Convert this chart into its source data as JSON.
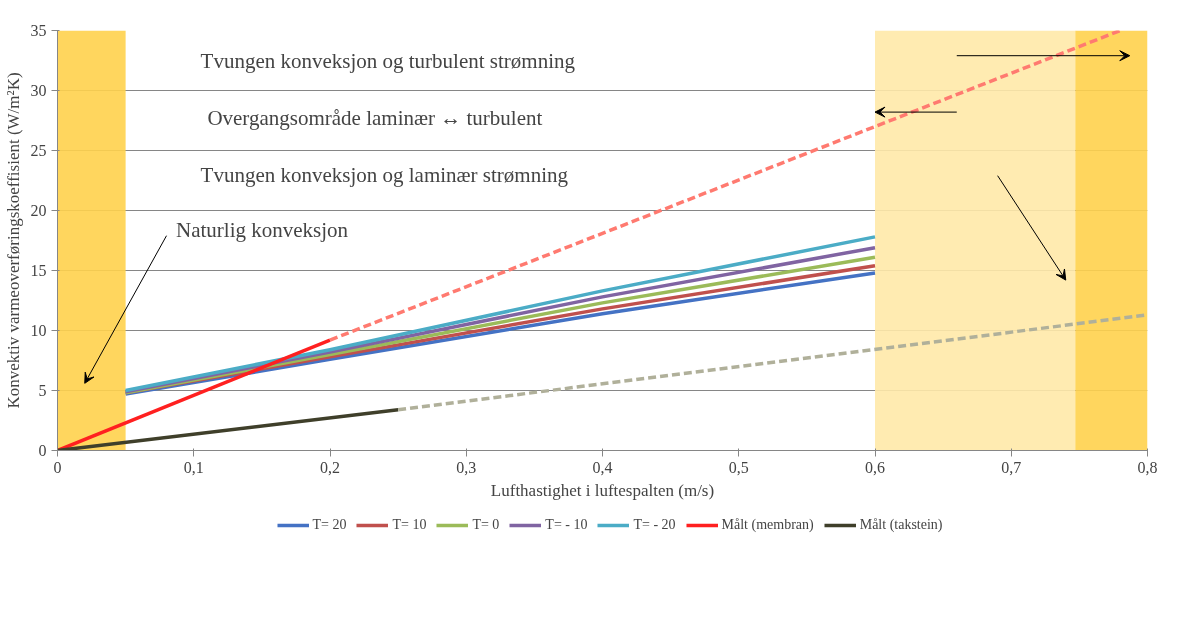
{
  "chart_data": {
    "type": "line",
    "xlabel": "Lufthastighet i luftespalten (m/s)",
    "ylabel": "Konvektiv varmeoverføringskoeffisient (W/m²K)",
    "xlim": [
      0,
      0.8
    ],
    "ylim": [
      0,
      35
    ],
    "xticks": [
      {
        "value": 0,
        "label": "0"
      },
      {
        "value": 0.1,
        "label": "0,1"
      },
      {
        "value": 0.2,
        "label": "0,2"
      },
      {
        "value": 0.3,
        "label": "0,3"
      },
      {
        "value": 0.4,
        "label": "0,4"
      },
      {
        "value": 0.5,
        "label": "0,5"
      },
      {
        "value": 0.6,
        "label": "0,6"
      },
      {
        "value": 0.7,
        "label": "0,7"
      },
      {
        "value": 0.8,
        "label": "0,8"
      }
    ],
    "yticks": [
      0,
      5,
      10,
      15,
      20,
      25,
      30,
      35
    ],
    "grid": "y",
    "legend": "bottom",
    "line_style": "solid",
    "series": [
      {
        "name": "T= 20",
        "color": "#4472c4",
        "x": [
          0.05,
          0.2,
          0.4,
          0.6
        ],
        "values": [
          4.7,
          7.6,
          11.4,
          14.8
        ]
      },
      {
        "name": "T= 10",
        "color": "#c0504d",
        "x": [
          0.05,
          0.2,
          0.4,
          0.6
        ],
        "values": [
          4.8,
          7.8,
          11.8,
          15.4
        ]
      },
      {
        "name": "T= 0",
        "color": "#9bbb59",
        "x": [
          0.05,
          0.2,
          0.4,
          0.6
        ],
        "values": [
          4.8,
          8.0,
          12.3,
          16.1
        ]
      },
      {
        "name": "T= - 10",
        "color": "#8064a2",
        "x": [
          0.05,
          0.2,
          0.4,
          0.6
        ],
        "values": [
          4.9,
          8.2,
          12.8,
          16.9
        ]
      },
      {
        "name": "T= - 20",
        "color": "#4bacc6",
        "x": [
          0.05,
          0.2,
          0.4,
          0.6
        ],
        "values": [
          5.0,
          8.4,
          13.3,
          17.8
        ]
      },
      {
        "name": "Målt (membran)",
        "color": "#ff2020",
        "x": [
          0,
          0.2
        ],
        "values": [
          0,
          9.2
        ]
      },
      {
        "color": "#ff7a70",
        "line_style": "dashed",
        "x": [
          0.2,
          0.78
        ],
        "values": [
          9.2,
          35
        ]
      },
      {
        "name": "Målt (takstein)",
        "color": "#3f3f2a",
        "x": [
          0,
          0.25
        ],
        "values": [
          0,
          3.4
        ]
      },
      {
        "color": "#b0b09a",
        "line_style": "dashed",
        "x": [
          0.25,
          0.8
        ],
        "values": [
          3.4,
          11.3
        ]
      }
    ],
    "bands": [
      {
        "axis": "x",
        "from": 0,
        "to": 0.05,
        "color": "#ffd24d"
      },
      {
        "axis": "x",
        "from": 0.6,
        "to": 0.747,
        "color": "#ffe9a8"
      },
      {
        "axis": "x",
        "from": 0.747,
        "to": 0.8,
        "color": "#ffd24d"
      }
    ],
    "annotations": [
      "Tvungen konveksjon og turbulent strømning",
      "Overgangsområde laminær ↔ turbulent",
      "Tvungen konveksjon og laminær strømning",
      "Naturlig konveksjon"
    ]
  }
}
